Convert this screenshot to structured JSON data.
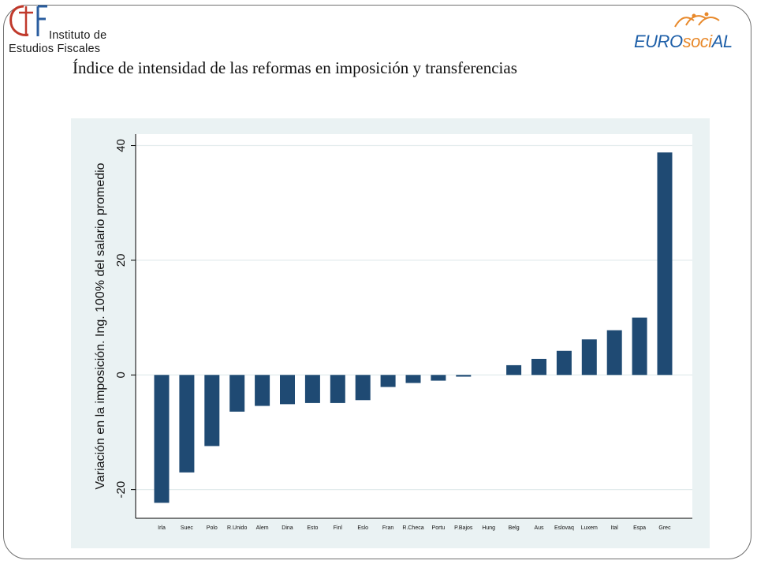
{
  "header": {
    "ief_logo": {
      "line1": "Instituto de",
      "line2": "Estudios Fiscales"
    },
    "eurosocial_logo": {
      "part1": "EURO",
      "part2": "soci",
      "part3": "AL"
    }
  },
  "slide": {
    "title": "Índice de intensidad de las reformas en imposición y transferencias"
  },
  "colors": {
    "bar": "#1f4a73",
    "panel_background": "#eaf2f3",
    "plot_background": "#ffffff",
    "grid": "#e3eced",
    "eurosocial_blue": "#1e5fa8",
    "eurosocial_orange": "#e8892b",
    "ief_red": "#c0392b",
    "ief_blue": "#2a5d9f"
  },
  "chart_data": {
    "type": "bar",
    "title": "",
    "xlabel": "",
    "ylabel": "Variación en la imposición. Ing. 100% del salario promedio",
    "ylim": [
      -25,
      42
    ],
    "yticks": [
      -20,
      0,
      20,
      40
    ],
    "ytick_labels": [
      "-20",
      "0",
      "20",
      "40"
    ],
    "grid": true,
    "categories": [
      "Irla",
      "Suec",
      "Polo",
      "R.Unido",
      "Alem",
      "Dina",
      "Esto",
      "Finl",
      "Eslo",
      "Fran",
      "R.Checa",
      "Portu",
      "P.Bajos",
      "Hung",
      "Belg",
      "Aus",
      "Eslovaq",
      "Luxem",
      "Ital",
      "Espa",
      "Grec"
    ],
    "values": [
      -22.3,
      -17.0,
      -12.4,
      -6.4,
      -5.4,
      -5.1,
      -4.9,
      -4.9,
      -4.4,
      -2.1,
      -1.4,
      -1.0,
      -0.3,
      0.0,
      1.7,
      2.8,
      4.2,
      6.2,
      7.8,
      10.0,
      38.8
    ]
  }
}
